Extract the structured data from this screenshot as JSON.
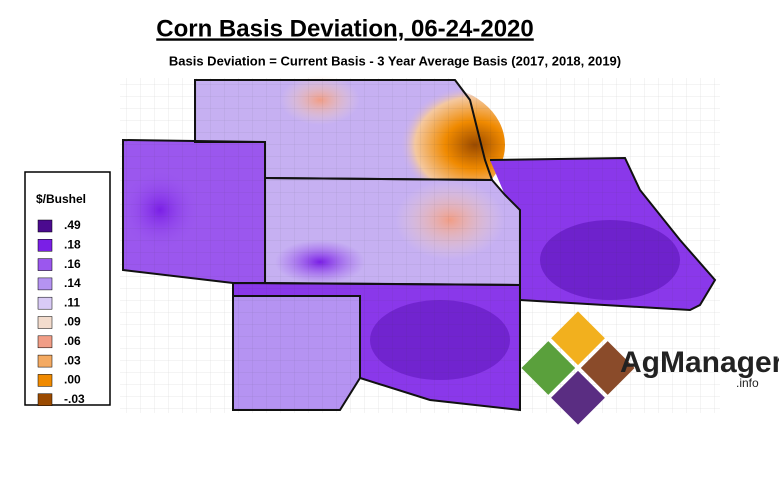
{
  "title": "Corn Basis Deviation, 06-24-2020",
  "subtitle": "Basis Deviation = Current Basis - 3 Year Average Basis (2017, 2018, 2019)",
  "legend": {
    "title": "$/Bushel",
    "items": [
      {
        "label": ".49",
        "color": "#4b0a8f"
      },
      {
        "label": ".18",
        "color": "#7a1fe6"
      },
      {
        "label": ".16",
        "color": "#9b57ee"
      },
      {
        "label": ".14",
        "color": "#b593f2"
      },
      {
        "label": ".11",
        "color": "#d9cbf6"
      },
      {
        "label": ".09",
        "color": "#f3dccd"
      },
      {
        "label": ".06",
        "color": "#f19d86"
      },
      {
        "label": ".03",
        "color": "#f4aa62"
      },
      {
        "label": ".00",
        "color": "#f08a00"
      },
      {
        "label": "-.03",
        "color": "#9a4a00"
      }
    ]
  },
  "logo": {
    "name": "AgManager",
    "suffix": ".info"
  }
}
